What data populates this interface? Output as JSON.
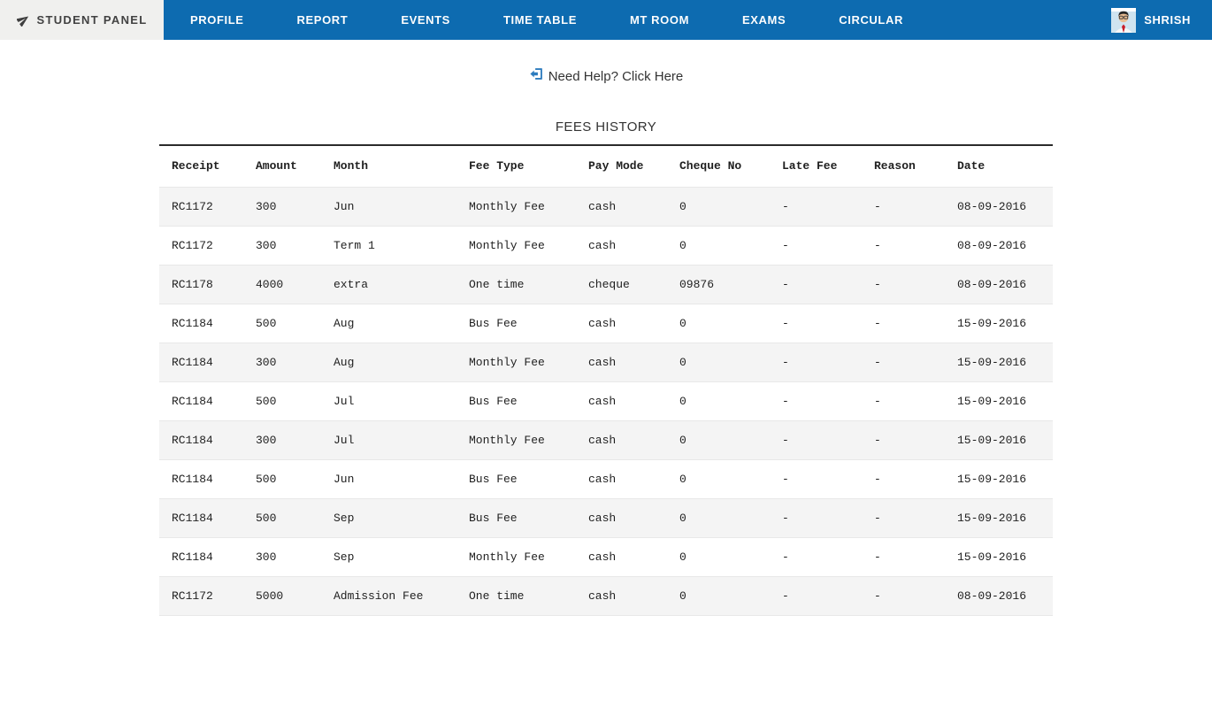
{
  "navbar": {
    "brand_label": "STUDENT PANEL",
    "items": [
      {
        "label": "PROFILE"
      },
      {
        "label": "REPORT"
      },
      {
        "label": "EVENTS"
      },
      {
        "label": "TIME TABLE"
      },
      {
        "label": "MT ROOM"
      },
      {
        "label": "EXAMS"
      },
      {
        "label": "CIRCULAR"
      }
    ],
    "user": {
      "name": "SHRISH"
    }
  },
  "help": {
    "label": "Need Help? Click Here"
  },
  "fees": {
    "title": "FEES HISTORY",
    "columns": [
      "Receipt",
      "Amount",
      "Month",
      "Fee Type",
      "Pay Mode",
      "Cheque No",
      "Late Fee",
      "Reason",
      "Date"
    ],
    "rows": [
      [
        "RC1172",
        "300",
        "Jun",
        "Monthly Fee",
        "cash",
        "0",
        "-",
        "-",
        "08-09-2016"
      ],
      [
        "RC1172",
        "300",
        "Term 1",
        "Monthly Fee",
        "cash",
        "0",
        "-",
        "-",
        "08-09-2016"
      ],
      [
        "RC1178",
        "4000",
        "extra",
        "One time",
        "cheque",
        "09876",
        "-",
        "-",
        "08-09-2016"
      ],
      [
        "RC1184",
        "500",
        "Aug",
        "Bus Fee",
        "cash",
        "0",
        "-",
        "-",
        "15-09-2016"
      ],
      [
        "RC1184",
        "300",
        "Aug",
        "Monthly Fee",
        "cash",
        "0",
        "-",
        "-",
        "15-09-2016"
      ],
      [
        "RC1184",
        "500",
        "Jul",
        "Bus Fee",
        "cash",
        "0",
        "-",
        "-",
        "15-09-2016"
      ],
      [
        "RC1184",
        "300",
        "Jul",
        "Monthly Fee",
        "cash",
        "0",
        "-",
        "-",
        "15-09-2016"
      ],
      [
        "RC1184",
        "500",
        "Jun",
        "Bus Fee",
        "cash",
        "0",
        "-",
        "-",
        "15-09-2016"
      ],
      [
        "RC1184",
        "500",
        "Sep",
        "Bus Fee",
        "cash",
        "0",
        "-",
        "-",
        "15-09-2016"
      ],
      [
        "RC1184",
        "300",
        "Sep",
        "Monthly Fee",
        "cash",
        "0",
        "-",
        "-",
        "15-09-2016"
      ],
      [
        "RC1172",
        "5000",
        "Admission Fee",
        "One time",
        "cash",
        "0",
        "-",
        "-",
        "08-09-2016"
      ]
    ]
  },
  "icons": {
    "brand": "paper-plane-icon",
    "help": "sign-in-door-icon",
    "user": "student-avatar"
  },
  "colors": {
    "navbar_blue": "#0d6bb0",
    "brand_bg": "#f0f0ee",
    "row_stripe": "#f4f4f4",
    "help_icon_blue": "#2e7cbe",
    "table_border_dark": "#2b2b2b"
  }
}
